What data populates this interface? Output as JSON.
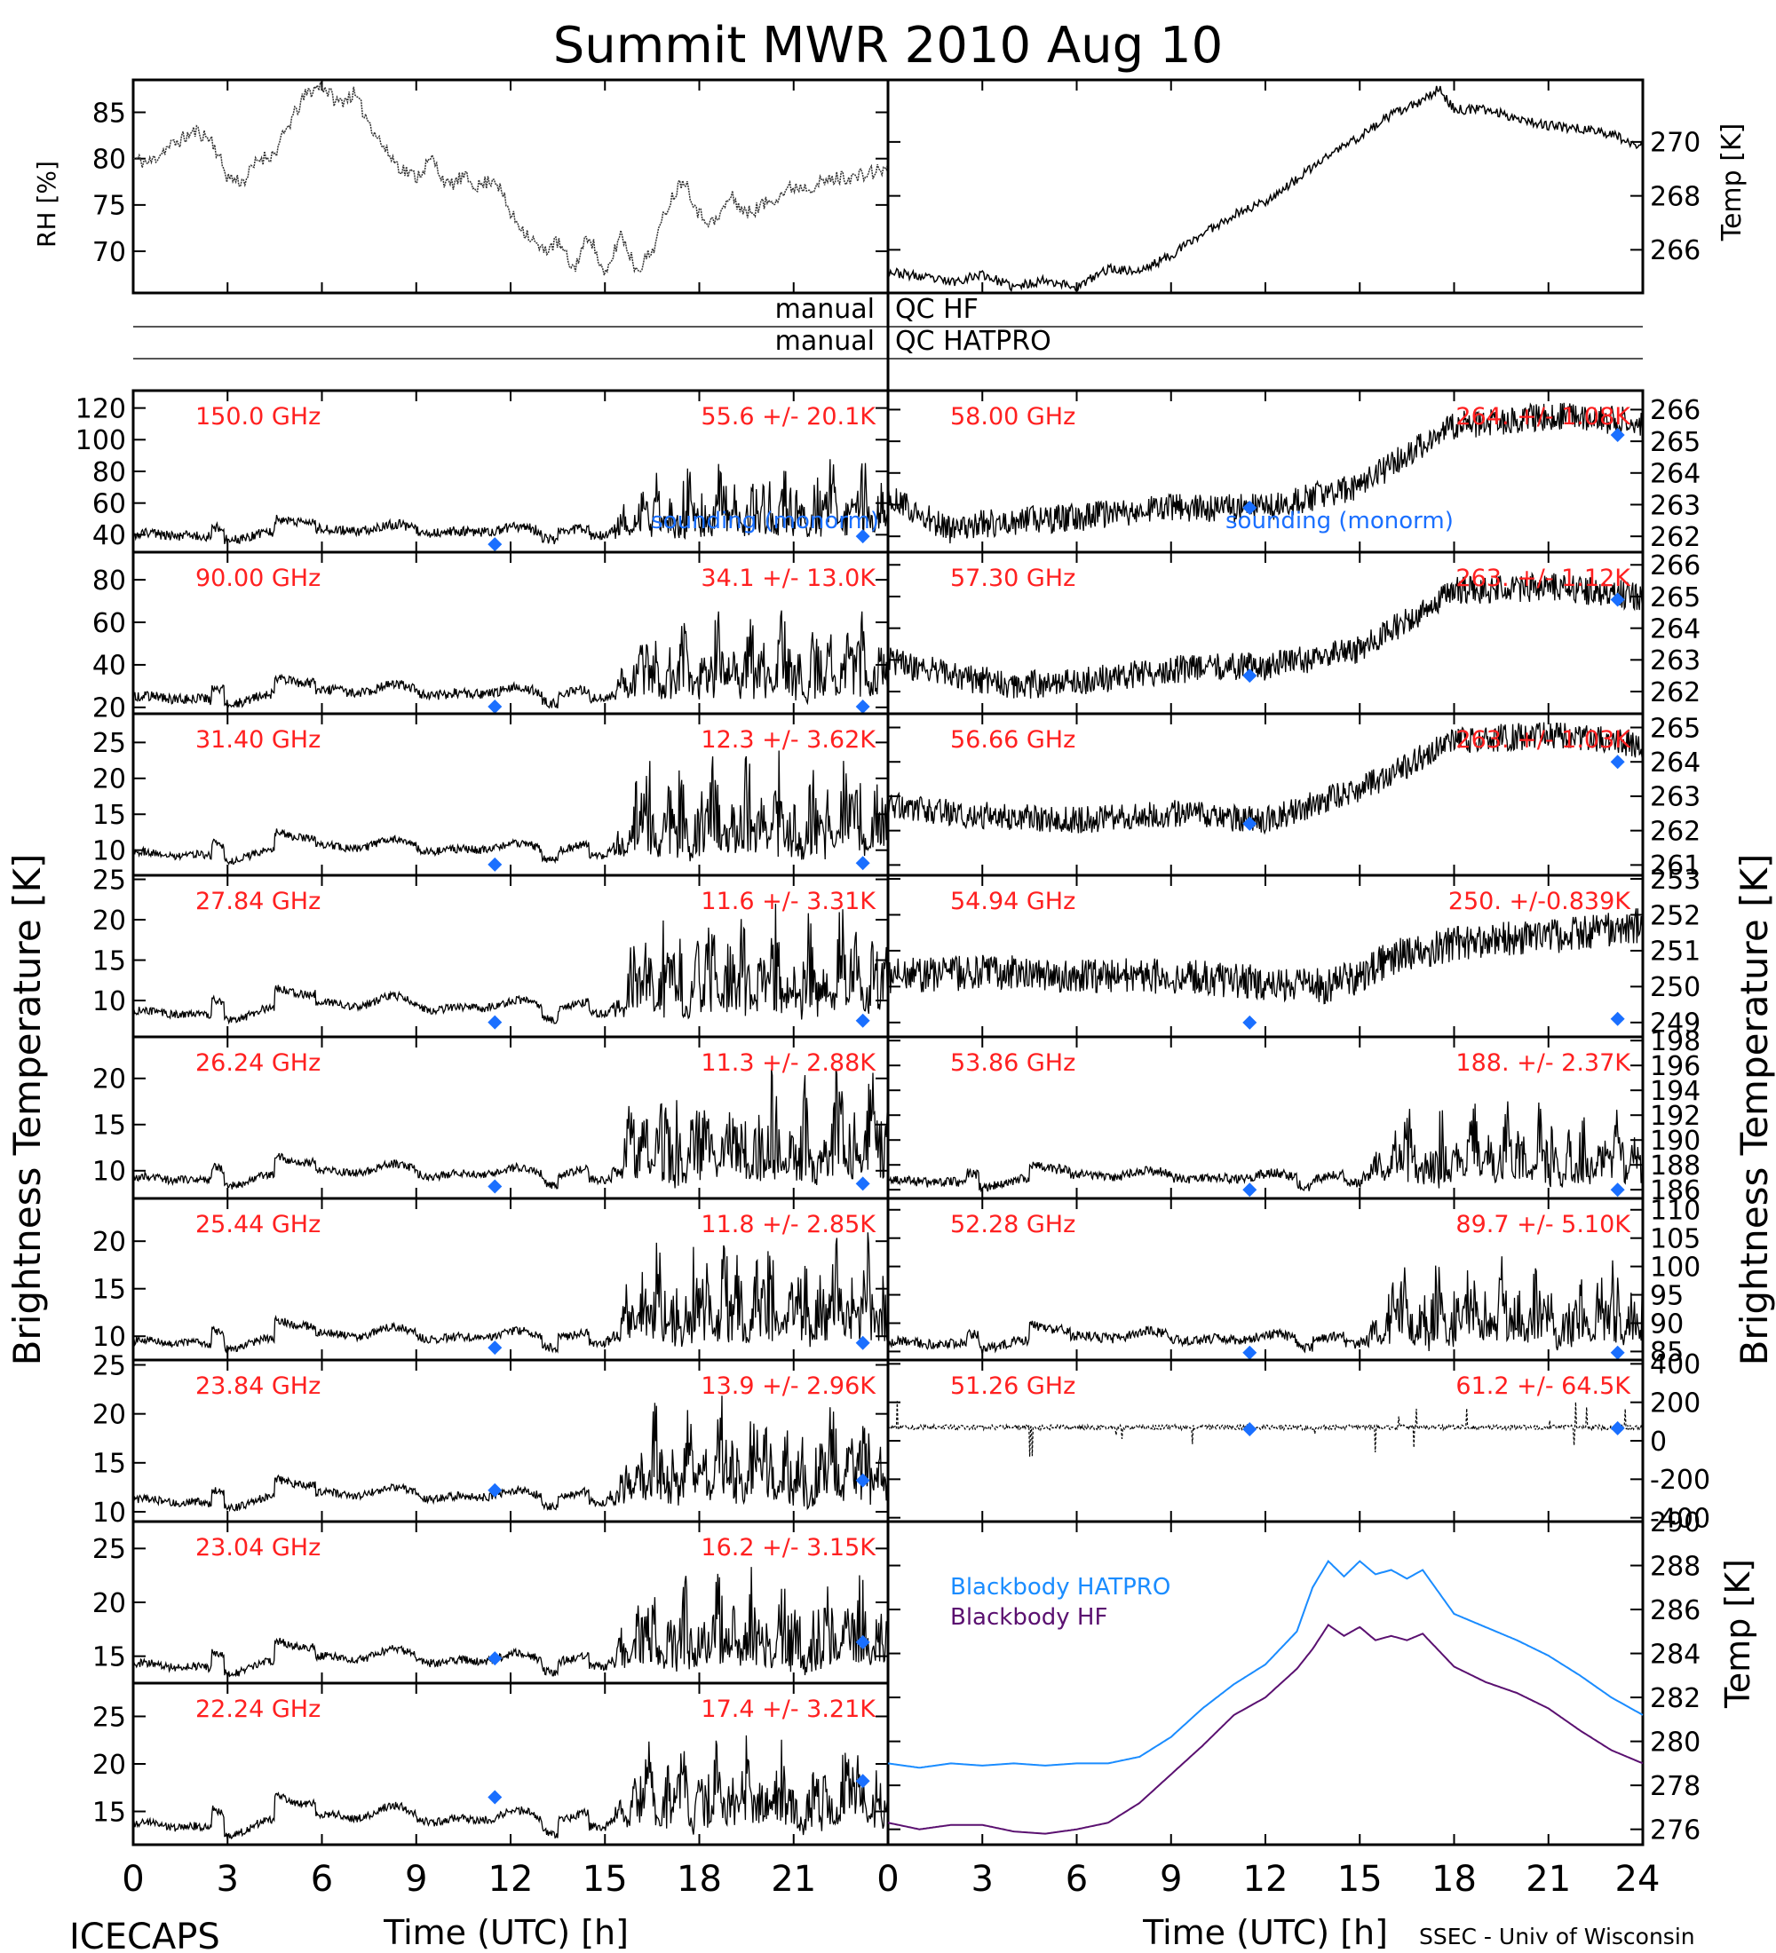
{
  "title": "Summit MWR 2010 Aug 10",
  "footer_left": "ICECAPS",
  "footer_right": "SSEC - Univ of Wisconsin",
  "colors": {
    "ink": "#000000",
    "label": "#ff2020",
    "sounding": "#1a6fff",
    "bb_hatpro": "#1a8cff",
    "bb_hf": "#5a1070"
  },
  "qc_labels": {
    "left": "manual",
    "hf": "QC HF",
    "hatpro": "QC HATPRO"
  },
  "chart_data": [
    {
      "type": "line",
      "id": "rh",
      "ylabel": "RH [%]",
      "ylim": [
        65.5,
        88.5
      ],
      "yticks": [
        70,
        75,
        80,
        85
      ],
      "xlim": [
        0,
        24
      ],
      "series": [
        {
          "values": [
            [
              0,
              80
            ],
            [
              0.5,
              79.5
            ],
            [
              1,
              81
            ],
            [
              1.5,
              82
            ],
            [
              2,
              83
            ],
            [
              2.5,
              82
            ],
            [
              3,
              78
            ],
            [
              3.5,
              77.5
            ],
            [
              4,
              80
            ],
            [
              4.5,
              80.5
            ],
            [
              5,
              84
            ],
            [
              5.5,
              87
            ],
            [
              6,
              88
            ],
            [
              6.5,
              86
            ],
            [
              7,
              87
            ],
            [
              7.5,
              84
            ],
            [
              8,
              81
            ],
            [
              8.5,
              79
            ],
            [
              9,
              78
            ],
            [
              9.5,
              80
            ],
            [
              10,
              77
            ],
            [
              10.5,
              78
            ],
            [
              11,
              77
            ],
            [
              11.5,
              78
            ],
            [
              12,
              74
            ],
            [
              12.5,
              72
            ],
            [
              13,
              70
            ],
            [
              13.5,
              71
            ],
            [
              14,
              68
            ],
            [
              14.5,
              72
            ],
            [
              15,
              67
            ],
            [
              15.5,
              72
            ],
            [
              16,
              68
            ],
            [
              16.5,
              70
            ],
            [
              17,
              75
            ],
            [
              17.5,
              78
            ],
            [
              18,
              74
            ],
            [
              18.5,
              73
            ],
            [
              19,
              76
            ],
            [
              19.5,
              74
            ],
            [
              20,
              75
            ],
            [
              20.5,
              76
            ],
            [
              21,
              77
            ],
            [
              21.5,
              77
            ],
            [
              22,
              77.5
            ],
            [
              22.5,
              78
            ],
            [
              23,
              78
            ],
            [
              23.5,
              78.5
            ],
            [
              24,
              79
            ]
          ]
        }
      ]
    },
    {
      "type": "line",
      "id": "temp",
      "ylabel": "Temp [K]",
      "ylim": [
        264.4,
        272.3
      ],
      "yticks": [
        266,
        268,
        270
      ],
      "xlim": [
        0,
        24
      ],
      "series": [
        {
          "values": [
            [
              0,
              265.2
            ],
            [
              1,
              265
            ],
            [
              2,
              264.8
            ],
            [
              3,
              265.1
            ],
            [
              4,
              264.6
            ],
            [
              5,
              264.9
            ],
            [
              6,
              264.6
            ],
            [
              7,
              265.3
            ],
            [
              8,
              265.2
            ],
            [
              9,
              265.8
            ],
            [
              10,
              266.6
            ],
            [
              11,
              267.3
            ],
            [
              12,
              267.8
            ],
            [
              13,
              268.6
            ],
            [
              14,
              269.5
            ],
            [
              15,
              270.2
            ],
            [
              16,
              271
            ],
            [
              17,
              271.5
            ],
            [
              17.5,
              272
            ],
            [
              18,
              271.2
            ],
            [
              19,
              271.2
            ],
            [
              20,
              270.9
            ],
            [
              21,
              270.6
            ],
            [
              22,
              270.5
            ],
            [
              23,
              270.3
            ],
            [
              24,
              269.8
            ]
          ]
        }
      ]
    }
  ],
  "brightness_panels": [
    {
      "freq": "150.0 GHz",
      "stats": "55.6 +/-  20.1K",
      "ylim": [
        29,
        131
      ],
      "yticks": [
        40,
        60,
        80,
        100,
        120
      ],
      "base": 35,
      "quiet": 0.16,
      "burst": 0.55,
      "noise": 0.06,
      "sounding": [
        [
          11.5,
          34
        ],
        [
          23.2,
          39
        ]
      ],
      "legend": "sounding (monorm)"
    },
    {
      "freq": "90.00 GHz",
      "stats": "34.1 +/-  13.0K",
      "ylim": [
        17,
        93
      ],
      "yticks": [
        20,
        40,
        60,
        80
      ],
      "base": 20,
      "quiet": 0.2,
      "burst": 0.6,
      "noise": 0.06,
      "sounding": [
        [
          11.5,
          19
        ],
        [
          23.2,
          19.5
        ]
      ]
    },
    {
      "freq": "31.40 GHz",
      "stats": "12.3 +/- 3.62K",
      "ylim": [
        6.5,
        29
      ],
      "yticks": [
        10,
        15,
        20,
        25
      ],
      "base": 8,
      "quiet": 0.22,
      "burst": 0.7,
      "noise": 0.05,
      "sounding": [
        [
          11.5,
          8
        ],
        [
          23.2,
          8.2
        ]
      ]
    },
    {
      "freq": "27.84 GHz",
      "stats": "11.6 +/- 3.31K",
      "ylim": [
        5.5,
        25.5
      ],
      "yticks": [
        10,
        15,
        20,
        25
      ],
      "base": 7,
      "quiet": 0.25,
      "burst": 0.72,
      "noise": 0.05,
      "sounding": [
        [
          11.5,
          7.3
        ],
        [
          23.2,
          7.5
        ]
      ]
    },
    {
      "freq": "26.24 GHz",
      "stats": "11.3 +/- 2.88K",
      "ylim": [
        7,
        24.5
      ],
      "yticks": [
        10,
        15,
        20
      ],
      "base": 8,
      "quiet": 0.22,
      "burst": 0.75,
      "noise": 0.05,
      "sounding": [
        [
          11.5,
          8.3
        ],
        [
          23.2,
          8.6
        ]
      ]
    },
    {
      "freq": "25.44 GHz",
      "stats": "11.8 +/- 2.85K",
      "ylim": [
        7.5,
        24.5
      ],
      "yticks": [
        10,
        15,
        20
      ],
      "base": 8.3,
      "quiet": 0.22,
      "burst": 0.75,
      "noise": 0.05,
      "sounding": [
        [
          11.5,
          8.8
        ],
        [
          23.2,
          9.3
        ]
      ]
    },
    {
      "freq": "23.84 GHz",
      "stats": "13.9 +/- 2.96K",
      "ylim": [
        9,
        25.5
      ],
      "yticks": [
        10,
        15,
        20,
        25
      ],
      "base": 10,
      "quiet": 0.22,
      "burst": 0.7,
      "noise": 0.05,
      "sounding": [
        [
          11.5,
          12.2
        ],
        [
          23.2,
          13.2
        ]
      ]
    },
    {
      "freq": "23.04 GHz",
      "stats": "16.2 +/- 3.15K",
      "ylim": [
        12.5,
        27.5
      ],
      "yticks": [
        15,
        20,
        25
      ],
      "base": 13,
      "quiet": 0.25,
      "burst": 0.65,
      "noise": 0.05,
      "sounding": [
        [
          11.5,
          14.8
        ],
        [
          23.2,
          16.3
        ]
      ]
    },
    {
      "freq": "22.24 GHz",
      "stats": "17.4 +/- 3.21K",
      "ylim": [
        11.5,
        28.5
      ],
      "yticks": [
        15,
        20,
        25
      ],
      "base": 12,
      "quiet": 0.3,
      "burst": 0.62,
      "noise": 0.05,
      "sounding": [
        [
          11.5,
          16.5
        ],
        [
          23.2,
          18.2
        ]
      ]
    },
    {
      "freq": "58.00 GHz",
      "stats": "264. +/- 1.08K",
      "ylim": [
        261.5,
        266.6
      ],
      "yticks": [
        262,
        263,
        264,
        265,
        266
      ],
      "mode": "trend",
      "trend": [
        [
          0,
          263.2
        ],
        [
          2,
          262.2
        ],
        [
          3,
          262.4
        ],
        [
          6,
          262.6
        ],
        [
          9,
          262.9
        ],
        [
          12,
          262.9
        ],
        [
          15,
          263.6
        ],
        [
          18,
          265.5
        ],
        [
          21,
          265.8
        ],
        [
          24,
          265.6
        ]
      ],
      "noise": 0.45,
      "sounding": [
        [
          11.5,
          262.9
        ],
        [
          23.2,
          265.2
        ]
      ],
      "legend": "sounding (monorm)"
    },
    {
      "freq": "57.30 GHz",
      "stats": "263. +/- 1.12K",
      "ylim": [
        261.3,
        266.4
      ],
      "yticks": [
        262,
        263,
        264,
        265,
        266
      ],
      "mode": "trend",
      "trend": [
        [
          0,
          263
        ],
        [
          2,
          262.5
        ],
        [
          4,
          262.2
        ],
        [
          6,
          262.3
        ],
        [
          9,
          262.7
        ],
        [
          12,
          262.8
        ],
        [
          15,
          263.3
        ],
        [
          18,
          265.2
        ],
        [
          21,
          265.3
        ],
        [
          24,
          265
        ]
      ],
      "noise": 0.45,
      "sounding": [
        [
          11.5,
          262.5
        ],
        [
          23.2,
          264.9
        ]
      ]
    },
    {
      "freq": "56.66 GHz",
      "stats": "263. +/- 1.03K",
      "ylim": [
        260.7,
        265.4
      ],
      "yticks": [
        261,
        262,
        263,
        264,
        265
      ],
      "mode": "trend",
      "trend": [
        [
          0,
          262.8
        ],
        [
          2,
          262.5
        ],
        [
          4,
          262.4
        ],
        [
          6,
          262.3
        ],
        [
          9,
          262.5
        ],
        [
          12,
          262.3
        ],
        [
          15,
          263.2
        ],
        [
          18,
          264.6
        ],
        [
          21,
          264.8
        ],
        [
          24,
          264.5
        ]
      ],
      "noise": 0.4,
      "sounding": [
        [
          11.5,
          262.2
        ],
        [
          23.2,
          264
        ]
      ]
    },
    {
      "freq": "54.94 GHz",
      "stats": "250. +/-0.839K",
      "ylim": [
        248.6,
        253.1
      ],
      "yticks": [
        249,
        250,
        251,
        252,
        253
      ],
      "mode": "trend",
      "trend": [
        [
          0,
          250.3
        ],
        [
          3,
          250.4
        ],
        [
          6,
          250.3
        ],
        [
          9,
          250.3
        ],
        [
          12,
          250.1
        ],
        [
          14,
          250
        ],
        [
          15,
          250.3
        ],
        [
          16,
          250.8
        ],
        [
          18,
          251.2
        ],
        [
          21,
          251.4
        ],
        [
          24,
          251.7
        ]
      ],
      "noise": 0.5,
      "sounding": [
        [
          11.5,
          249
        ],
        [
          23.2,
          249.1
        ]
      ]
    },
    {
      "freq": "53.86 GHz",
      "stats": "188. +/- 2.37K",
      "ylim": [
        185.3,
        198.3
      ],
      "yticks": [
        186,
        188,
        190,
        192,
        194,
        196,
        198
      ],
      "base": 186,
      "quiet": 0.17,
      "burst": 0.55,
      "noise": 0.06,
      "sounding": [
        [
          11.5,
          186
        ],
        [
          23.2,
          186
        ]
      ]
    },
    {
      "freq": "52.28 GHz",
      "stats": "89.7 +/- 5.10K",
      "ylim": [
        83.5,
        112
      ],
      "yticks": [
        85,
        90,
        95,
        100,
        105,
        110
      ],
      "base": 85,
      "quiet": 0.18,
      "burst": 0.6,
      "noise": 0.06,
      "sounding": [
        [
          11.5,
          84.8
        ],
        [
          23.2,
          84.8
        ]
      ]
    },
    {
      "freq": "51.26 GHz",
      "stats": "61.2 +/- 64.5K",
      "ylim": [
        -420,
        420
      ],
      "yticks": [
        -400,
        -200,
        0,
        200,
        400
      ],
      "mode": "flat",
      "level": 70,
      "sounding": [
        [
          11.5,
          60
        ],
        [
          23.2,
          65
        ]
      ]
    }
  ],
  "blackbody": {
    "ylabel": "Temp [K]",
    "ylim": [
      275.3,
      290
    ],
    "yticks": [
      276,
      278,
      280,
      282,
      284,
      286,
      288,
      290
    ],
    "series": [
      {
        "name": "Blackbody HATPRO",
        "values": [
          [
            0,
            279
          ],
          [
            1,
            278.8
          ],
          [
            2,
            279
          ],
          [
            3,
            278.9
          ],
          [
            4,
            279
          ],
          [
            5,
            278.9
          ],
          [
            6,
            279
          ],
          [
            7,
            279
          ],
          [
            8,
            279.3
          ],
          [
            9,
            280.2
          ],
          [
            10,
            281.5
          ],
          [
            11,
            282.6
          ],
          [
            12,
            283.5
          ],
          [
            13,
            285
          ],
          [
            13.5,
            287
          ],
          [
            14,
            288.2
          ],
          [
            14.5,
            287.5
          ],
          [
            15,
            288.2
          ],
          [
            15.5,
            287.6
          ],
          [
            16,
            287.8
          ],
          [
            16.5,
            287.4
          ],
          [
            17,
            287.8
          ],
          [
            18,
            285.8
          ],
          [
            19,
            285.2
          ],
          [
            20,
            284.6
          ],
          [
            21,
            283.9
          ],
          [
            22,
            283
          ],
          [
            23,
            282
          ],
          [
            24,
            281.2
          ]
        ]
      },
      {
        "name": "Blackbody HF",
        "values": [
          [
            0,
            276.3
          ],
          [
            1,
            276
          ],
          [
            2,
            276.2
          ],
          [
            3,
            276.2
          ],
          [
            4,
            275.9
          ],
          [
            5,
            275.8
          ],
          [
            6,
            276
          ],
          [
            7,
            276.3
          ],
          [
            8,
            277.2
          ],
          [
            9,
            278.5
          ],
          [
            10,
            279.8
          ],
          [
            11,
            281.2
          ],
          [
            12,
            282
          ],
          [
            13,
            283.3
          ],
          [
            13.5,
            284.2
          ],
          [
            14,
            285.3
          ],
          [
            14.5,
            284.8
          ],
          [
            15,
            285.2
          ],
          [
            15.5,
            284.6
          ],
          [
            16,
            284.8
          ],
          [
            16.5,
            284.6
          ],
          [
            17,
            284.9
          ],
          [
            18,
            283.4
          ],
          [
            19,
            282.7
          ],
          [
            20,
            282.2
          ],
          [
            21,
            281.5
          ],
          [
            22,
            280.5
          ],
          [
            23,
            279.6
          ],
          [
            24,
            279
          ]
        ]
      }
    ]
  },
  "axes": {
    "xticks_left": [
      "0",
      "3",
      "6",
      "9",
      "12",
      "15",
      "18",
      "21"
    ],
    "xticks_right": [
      "0",
      "3",
      "6",
      "9",
      "12",
      "15",
      "18",
      "21",
      "24"
    ],
    "xlabel": "Time (UTC) [h]",
    "ylabel_left": "Brightness Temperature [K]",
    "ylabel_right": "Brightness Temperature [K]"
  }
}
